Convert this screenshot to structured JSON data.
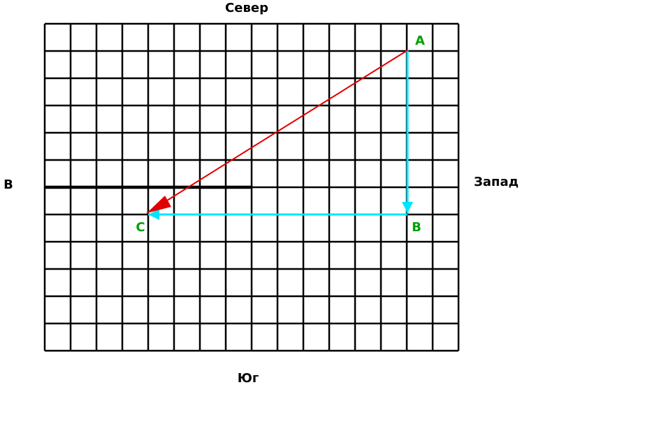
{
  "directions": {
    "north": "Север",
    "south": "Юг",
    "east": "В",
    "west": "Запад"
  },
  "points": [
    {
      "label": "A"
    },
    {
      "label": "B"
    },
    {
      "label": "C"
    }
  ]
}
